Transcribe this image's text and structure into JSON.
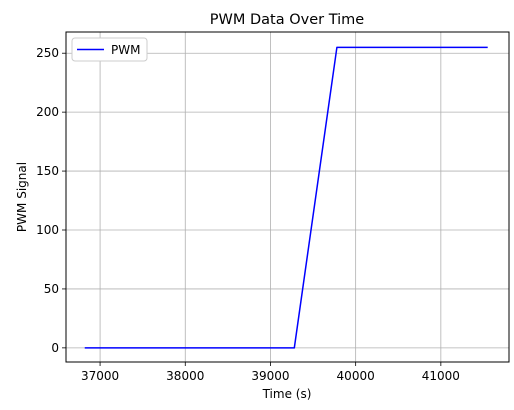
{
  "chart_data": {
    "type": "line",
    "title": "PWM Data Over Time",
    "xlabel": "Time (s)",
    "ylabel": "PWM Signal",
    "xlim": [
      36600,
      41800
    ],
    "ylim": [
      -12,
      268
    ],
    "xticks": [
      37000,
      38000,
      39000,
      40000,
      41000
    ],
    "yticks": [
      0,
      50,
      100,
      150,
      200,
      250
    ],
    "grid": true,
    "legend": "upper-left",
    "series": [
      {
        "name": "PWM",
        "color": "#0000ff",
        "x": [
          36820,
          39280,
          39780,
          41550
        ],
        "y": [
          0,
          0,
          255,
          255
        ]
      }
    ]
  }
}
